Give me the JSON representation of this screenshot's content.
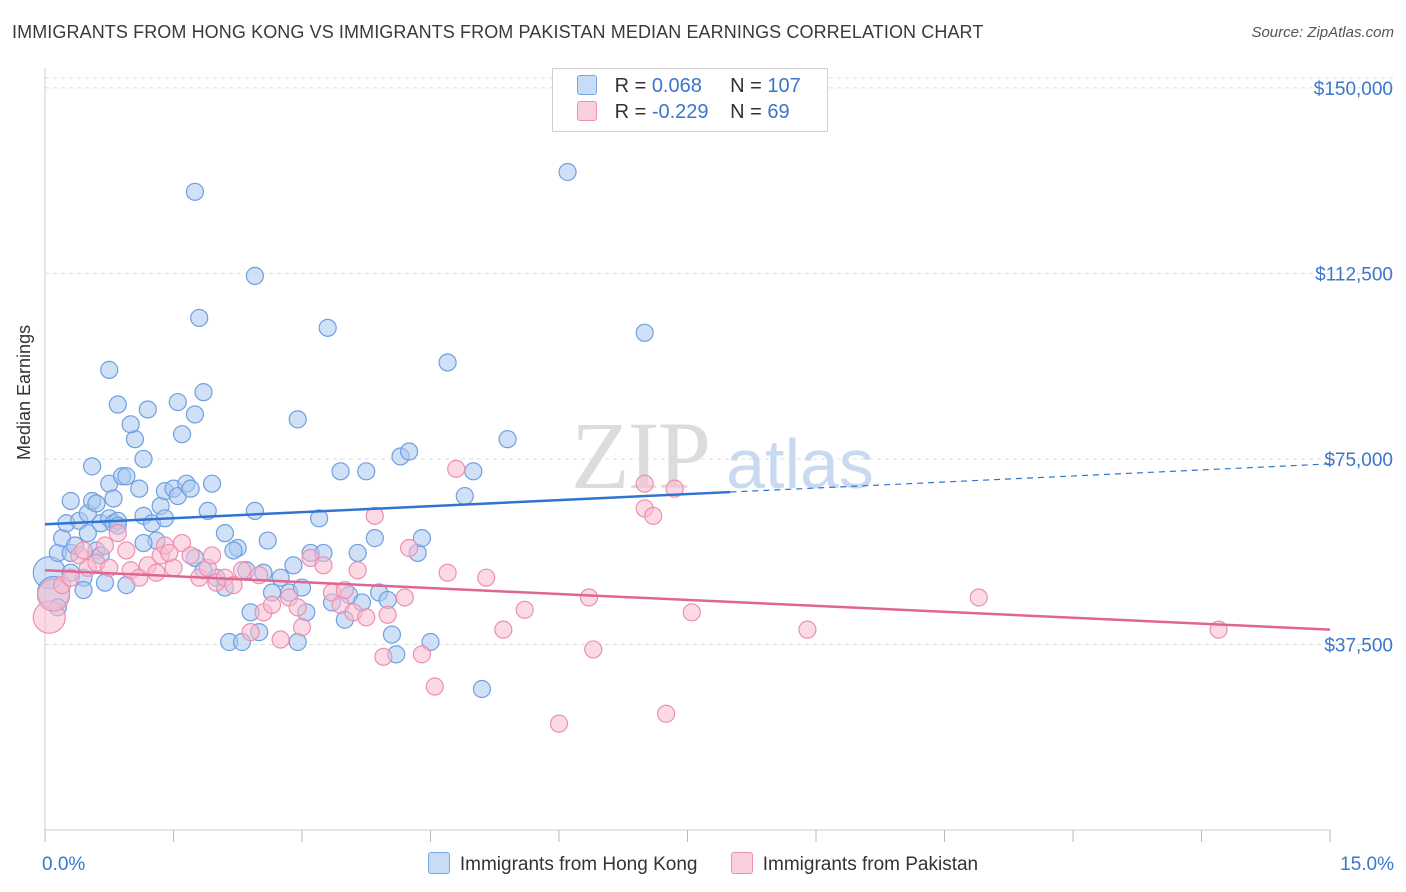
{
  "title": "IMMIGRANTS FROM HONG KONG VS IMMIGRANTS FROM PAKISTAN MEDIAN EARNINGS CORRELATION CHART",
  "source": "Source: ZipAtlas.com",
  "watermark": {
    "zip": "ZIP",
    "atlas": "atlas"
  },
  "legend": {
    "rows": [
      {
        "r_label": "R =",
        "r_value": "0.068",
        "n_label": "N =",
        "n_value": "107",
        "color": "#a9c8f0",
        "border": "#7aa7e0"
      },
      {
        "r_label": "R =",
        "r_value": "-0.229",
        "n_label": "N =",
        "n_value": "69",
        "color": "#f7bcd0",
        "border": "#ee8fb1"
      }
    ]
  },
  "chart_data": {
    "type": "scatter",
    "xlabel": "",
    "ylabel": "Median Earnings",
    "xlim": [
      0,
      15
    ],
    "ylim": [
      0,
      152000
    ],
    "x_tick_labels": [
      "0.0%",
      "15.0%"
    ],
    "y_ticks": [
      37500,
      75000,
      112500,
      150000
    ],
    "y_tick_labels": [
      "$37,500",
      "$75,000",
      "$112,500",
      "$150,000"
    ],
    "grid": true,
    "series": [
      {
        "name": "Immigrants from Hong Kong",
        "color": "#a9c8f0",
        "stroke": "#6f9fe0",
        "trend_color": "#2f74d0",
        "trend": {
          "x_start": 0,
          "y_start": 61800,
          "x_solid_end": 8.0,
          "x_end": 15,
          "y_end": 74000
        },
        "points": [
          [
            0.05,
            52000
          ],
          [
            0.1,
            48000
          ],
          [
            0.15,
            56000
          ],
          [
            0.2,
            59000
          ],
          [
            0.25,
            62000
          ],
          [
            0.3,
            56000
          ],
          [
            0.35,
            57500
          ],
          [
            0.4,
            62500
          ],
          [
            0.45,
            51000
          ],
          [
            0.5,
            64000
          ],
          [
            0.5,
            60000
          ],
          [
            0.55,
            73500
          ],
          [
            0.55,
            66500
          ],
          [
            0.6,
            56500
          ],
          [
            0.6,
            66000
          ],
          [
            0.65,
            62000
          ],
          [
            0.7,
            50000
          ],
          [
            0.75,
            63000
          ],
          [
            0.75,
            70000
          ],
          [
            0.8,
            62000
          ],
          [
            0.85,
            86000
          ],
          [
            0.8,
            67000
          ],
          [
            0.85,
            62500
          ],
          [
            0.9,
            71500
          ],
          [
            0.95,
            71500
          ],
          [
            0.75,
            93000
          ],
          [
            1.1,
            69000
          ],
          [
            1.05,
            79000
          ],
          [
            1.15,
            63500
          ],
          [
            1.15,
            75000
          ],
          [
            1.25,
            62000
          ],
          [
            1.3,
            58500
          ],
          [
            1.35,
            65500
          ],
          [
            1.4,
            68500
          ],
          [
            1.5,
            69000
          ],
          [
            1.55,
            86500
          ],
          [
            1.55,
            67500
          ],
          [
            1.6,
            80000
          ],
          [
            1.65,
            70000
          ],
          [
            1.7,
            69000
          ],
          [
            1.75,
            55000
          ],
          [
            1.75,
            84000
          ],
          [
            1.8,
            103500
          ],
          [
            1.85,
            88500
          ],
          [
            1.95,
            70000
          ],
          [
            1.9,
            64500
          ],
          [
            1.0,
            82000
          ],
          [
            1.2,
            85000
          ],
          [
            2.0,
            51000
          ],
          [
            2.1,
            60000
          ],
          [
            2.1,
            49000
          ],
          [
            2.15,
            38000
          ],
          [
            2.25,
            57000
          ],
          [
            2.3,
            38000
          ],
          [
            2.35,
            52500
          ],
          [
            2.4,
            44000
          ],
          [
            2.45,
            64500
          ],
          [
            2.5,
            40000
          ],
          [
            2.6,
            58500
          ],
          [
            2.65,
            48000
          ],
          [
            2.75,
            51000
          ],
          [
            2.85,
            48000
          ],
          [
            2.9,
            53500
          ],
          [
            2.95,
            38000
          ],
          [
            3.0,
            49000
          ],
          [
            3.05,
            44000
          ],
          [
            3.1,
            56000
          ],
          [
            3.2,
            63000
          ],
          [
            3.25,
            56000
          ],
          [
            3.3,
            101500
          ],
          [
            3.35,
            46000
          ],
          [
            3.45,
            72500
          ],
          [
            3.5,
            42500
          ],
          [
            3.55,
            47500
          ],
          [
            3.65,
            56000
          ],
          [
            3.75,
            72500
          ],
          [
            3.85,
            59000
          ],
          [
            3.9,
            48000
          ],
          [
            4.0,
            46500
          ],
          [
            4.05,
            39500
          ],
          [
            4.1,
            35500
          ],
          [
            4.15,
            75500
          ],
          [
            4.25,
            76500
          ],
          [
            4.35,
            56000
          ],
          [
            4.4,
            59000
          ],
          [
            4.5,
            38000
          ],
          [
            4.7,
            94500
          ],
          [
            4.9,
            67500
          ],
          [
            5.0,
            72500
          ],
          [
            5.1,
            28500
          ],
          [
            5.4,
            79000
          ],
          [
            6.1,
            133000
          ],
          [
            7.0,
            100500
          ],
          [
            2.45,
            112000
          ],
          [
            1.75,
            129000
          ],
          [
            2.95,
            83000
          ],
          [
            1.4,
            63000
          ],
          [
            0.45,
            48500
          ],
          [
            0.3,
            52000
          ],
          [
            0.95,
            49500
          ],
          [
            1.85,
            52500
          ],
          [
            2.2,
            56500
          ],
          [
            0.15,
            45000
          ],
          [
            0.3,
            66500
          ],
          [
            2.55,
            52000
          ],
          [
            3.7,
            46000
          ],
          [
            0.85,
            61500
          ],
          [
            1.15,
            58000
          ],
          [
            0.65,
            55500
          ]
        ]
      },
      {
        "name": "Immigrants from Pakistan",
        "color": "#f7bcd0",
        "stroke": "#ee8fb1",
        "trend_color": "#e06592",
        "trend": {
          "x_start": 0,
          "y_start": 52500,
          "x_solid_end": 15,
          "x_end": 15,
          "y_end": 40500
        },
        "points": [
          [
            0.05,
            43000
          ],
          [
            0.1,
            47500
          ],
          [
            0.2,
            49500
          ],
          [
            0.3,
            51000
          ],
          [
            0.4,
            55500
          ],
          [
            0.5,
            53000
          ],
          [
            0.6,
            54000
          ],
          [
            0.7,
            57500
          ],
          [
            0.75,
            53000
          ],
          [
            0.85,
            60000
          ],
          [
            0.95,
            56500
          ],
          [
            1.0,
            52500
          ],
          [
            1.1,
            51000
          ],
          [
            1.2,
            53500
          ],
          [
            1.3,
            52000
          ],
          [
            1.35,
            55500
          ],
          [
            1.4,
            57500
          ],
          [
            1.5,
            53000
          ],
          [
            1.6,
            58000
          ],
          [
            1.7,
            55500
          ],
          [
            1.8,
            51000
          ],
          [
            1.9,
            53000
          ],
          [
            2.0,
            50000
          ],
          [
            2.1,
            51000
          ],
          [
            2.2,
            49500
          ],
          [
            2.3,
            52500
          ],
          [
            2.4,
            40000
          ],
          [
            2.5,
            51500
          ],
          [
            2.55,
            44000
          ],
          [
            2.65,
            45500
          ],
          [
            2.75,
            38500
          ],
          [
            2.85,
            47000
          ],
          [
            2.95,
            45000
          ],
          [
            3.0,
            41000
          ],
          [
            3.1,
            55000
          ],
          [
            3.25,
            53500
          ],
          [
            3.35,
            48000
          ],
          [
            3.45,
            45500
          ],
          [
            3.5,
            48500
          ],
          [
            3.6,
            44000
          ],
          [
            3.65,
            52500
          ],
          [
            3.75,
            43000
          ],
          [
            3.85,
            63500
          ],
          [
            3.95,
            35000
          ],
          [
            4.0,
            43500
          ],
          [
            4.2,
            47000
          ],
          [
            4.25,
            57000
          ],
          [
            4.4,
            35500
          ],
          [
            4.55,
            29000
          ],
          [
            4.7,
            52000
          ],
          [
            4.8,
            73000
          ],
          [
            5.15,
            51000
          ],
          [
            5.35,
            40500
          ],
          [
            5.6,
            44500
          ],
          [
            6.0,
            21500
          ],
          [
            6.35,
            47000
          ],
          [
            6.4,
            36500
          ],
          [
            7.0,
            70000
          ],
          [
            7.0,
            65000
          ],
          [
            7.1,
            63500
          ],
          [
            7.25,
            23500
          ],
          [
            7.35,
            69000
          ],
          [
            7.55,
            44000
          ],
          [
            8.9,
            40500
          ],
          [
            10.9,
            47000
          ],
          [
            13.7,
            40500
          ],
          [
            1.95,
            55500
          ],
          [
            0.45,
            56500
          ],
          [
            1.45,
            56000
          ]
        ]
      }
    ]
  },
  "bottom_legend": [
    "Immigrants from Hong Kong",
    "Immigrants from Pakistan"
  ]
}
